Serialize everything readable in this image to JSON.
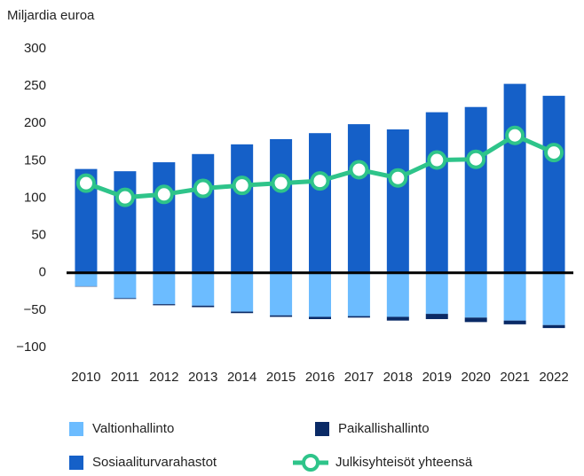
{
  "chart_data": {
    "type": "bar",
    "y_label": "Miljardia euroa",
    "categories": [
      "2010",
      "2011",
      "2012",
      "2013",
      "2014",
      "2015",
      "2016",
      "2017",
      "2018",
      "2019",
      "2020",
      "2021",
      "2022"
    ],
    "series": [
      {
        "name": "Valtionhallinto",
        "color": "#6cbcff",
        "values": [
          -18,
          -34,
          -42,
          -44,
          -52,
          -57,
          -59,
          -58,
          -59,
          -55,
          -60,
          -64,
          -70
        ]
      },
      {
        "name": "Paikallishallinto",
        "color": "#0a2a66",
        "values": [
          -0.5,
          -1,
          -1.5,
          -2,
          -2,
          -2,
          -3,
          -2,
          -5,
          -7,
          -6,
          -5,
          -4
        ]
      },
      {
        "name": "Sosiaaliturvarahastot",
        "color": "#1560c8",
        "values": [
          139,
          136,
          148,
          159,
          172,
          179,
          187,
          199,
          192,
          215,
          222,
          253,
          237
        ]
      },
      {
        "name": "Julkisyhteisöt yhteensä",
        "type": "line",
        "color": "#2ec48a",
        "values": [
          120,
          101,
          105,
          113,
          117,
          120,
          123,
          138,
          127,
          151,
          152,
          184,
          161
        ]
      }
    ],
    "ylim": [
      -100,
      300
    ],
    "yticks": [
      {
        "value": -100,
        "label": "−100"
      },
      {
        "value": -50,
        "label": "−50"
      },
      0,
      50,
      100,
      150,
      200,
      250,
      300
    ],
    "grid": false
  }
}
